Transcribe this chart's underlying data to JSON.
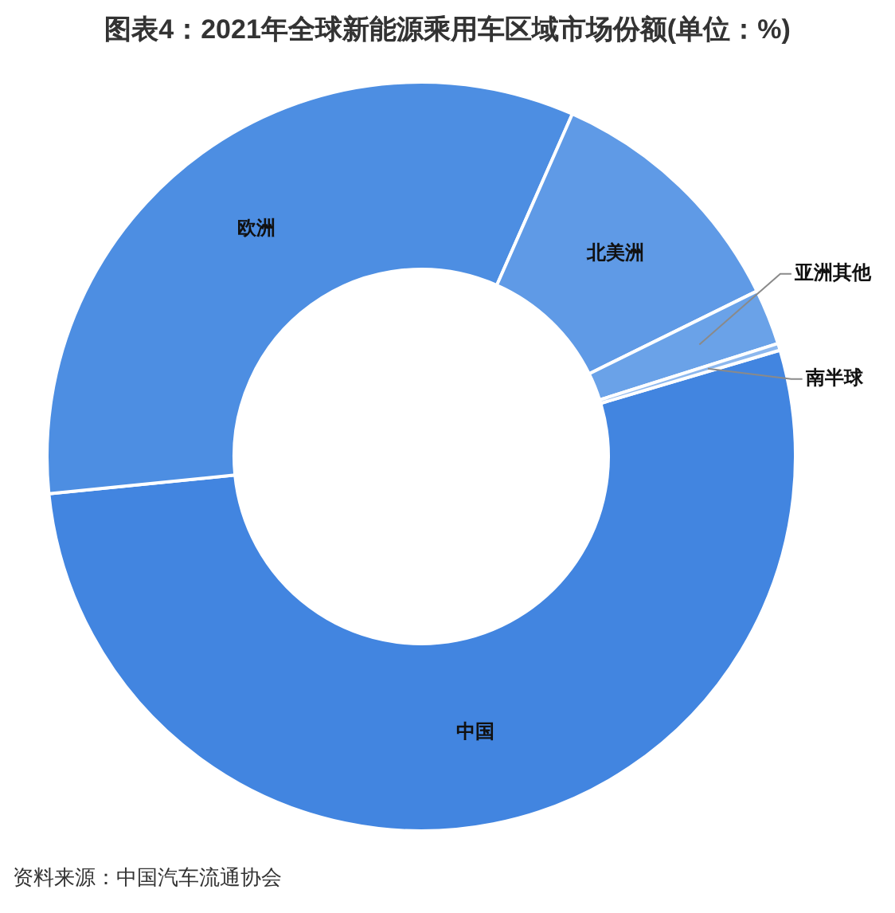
{
  "chart_data": {
    "type": "donut",
    "title": "图表4：2021年全球新能源乘用车区域市场份额(单位：%)",
    "categories": [
      "中国",
      "欧洲",
      "北美洲",
      "亚洲其他",
      "南半球"
    ],
    "values": [
      53.0,
      33.2,
      11.1,
      2.4,
      0.3
    ],
    "colors": [
      "#4285e0",
      "#4d8ee2",
      "#5f9ae6",
      "#6aa2e8",
      "#8db8ee"
    ],
    "annotations": [
      "资料来源：中国汽车流通协会"
    ]
  }
}
